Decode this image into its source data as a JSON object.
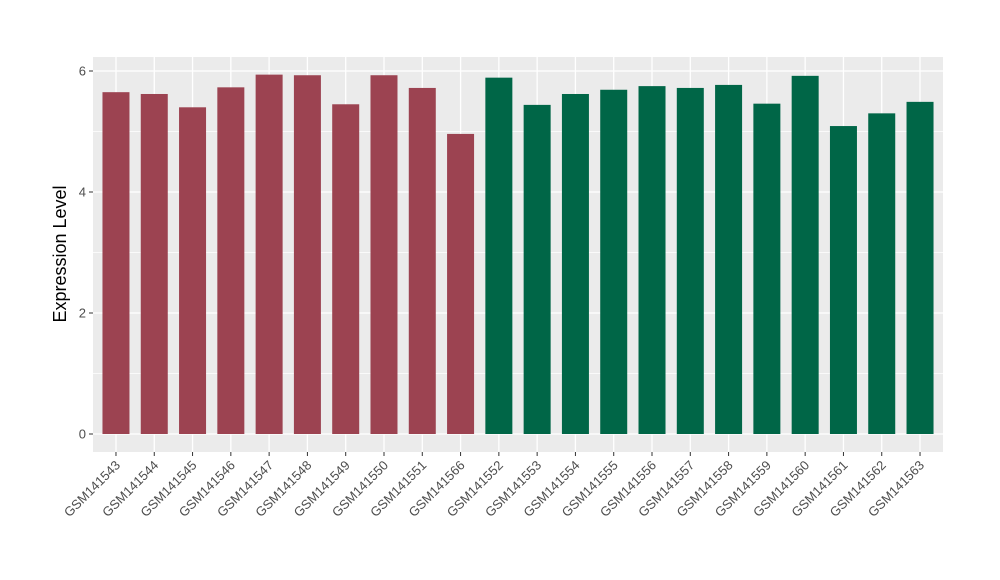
{
  "chart_data": {
    "type": "bar",
    "ylabel": "Expression Level",
    "xlabel": "",
    "yticks": [
      "0",
      "2",
      "4",
      "6"
    ],
    "ytick_values": [
      0,
      2,
      4,
      6
    ],
    "ytick_minor_values": [
      1,
      3,
      5
    ],
    "ylim": [
      0,
      6.24
    ],
    "grid": "on",
    "legend_position": "none",
    "x_label_rotation_deg": 45,
    "categories": [
      "GSM141543",
      "GSM141544",
      "GSM141545",
      "GSM141546",
      "GSM141547",
      "GSM141548",
      "GSM141549",
      "GSM141550",
      "GSM141551",
      "GSM141566",
      "GSM141552",
      "GSM141553",
      "GSM141554",
      "GSM141555",
      "GSM141556",
      "GSM141557",
      "GSM141558",
      "GSM141559",
      "GSM141560",
      "GSM141561",
      "GSM141562",
      "GSM141563"
    ],
    "values": [
      5.65,
      5.62,
      5.4,
      5.73,
      5.94,
      5.93,
      5.45,
      5.93,
      5.72,
      4.96,
      5.89,
      5.44,
      5.62,
      5.69,
      5.75,
      5.72,
      5.77,
      5.46,
      5.92,
      5.09,
      5.3,
      5.49
    ],
    "groups": [
      "red",
      "red",
      "red",
      "red",
      "red",
      "red",
      "red",
      "red",
      "red",
      "red",
      "green",
      "green",
      "green",
      "green",
      "green",
      "green",
      "green",
      "green",
      "green",
      "green",
      "green",
      "green"
    ],
    "colors": {
      "red": "#9C4351",
      "green": "#006647",
      "panel_background": "#EBEBEB",
      "gridline": "#FFFFFF",
      "tick_label": "#4D4D4D",
      "tick_mark": "#333333",
      "axis_title": "#000000",
      "page_background": "#FFFFFF"
    }
  }
}
